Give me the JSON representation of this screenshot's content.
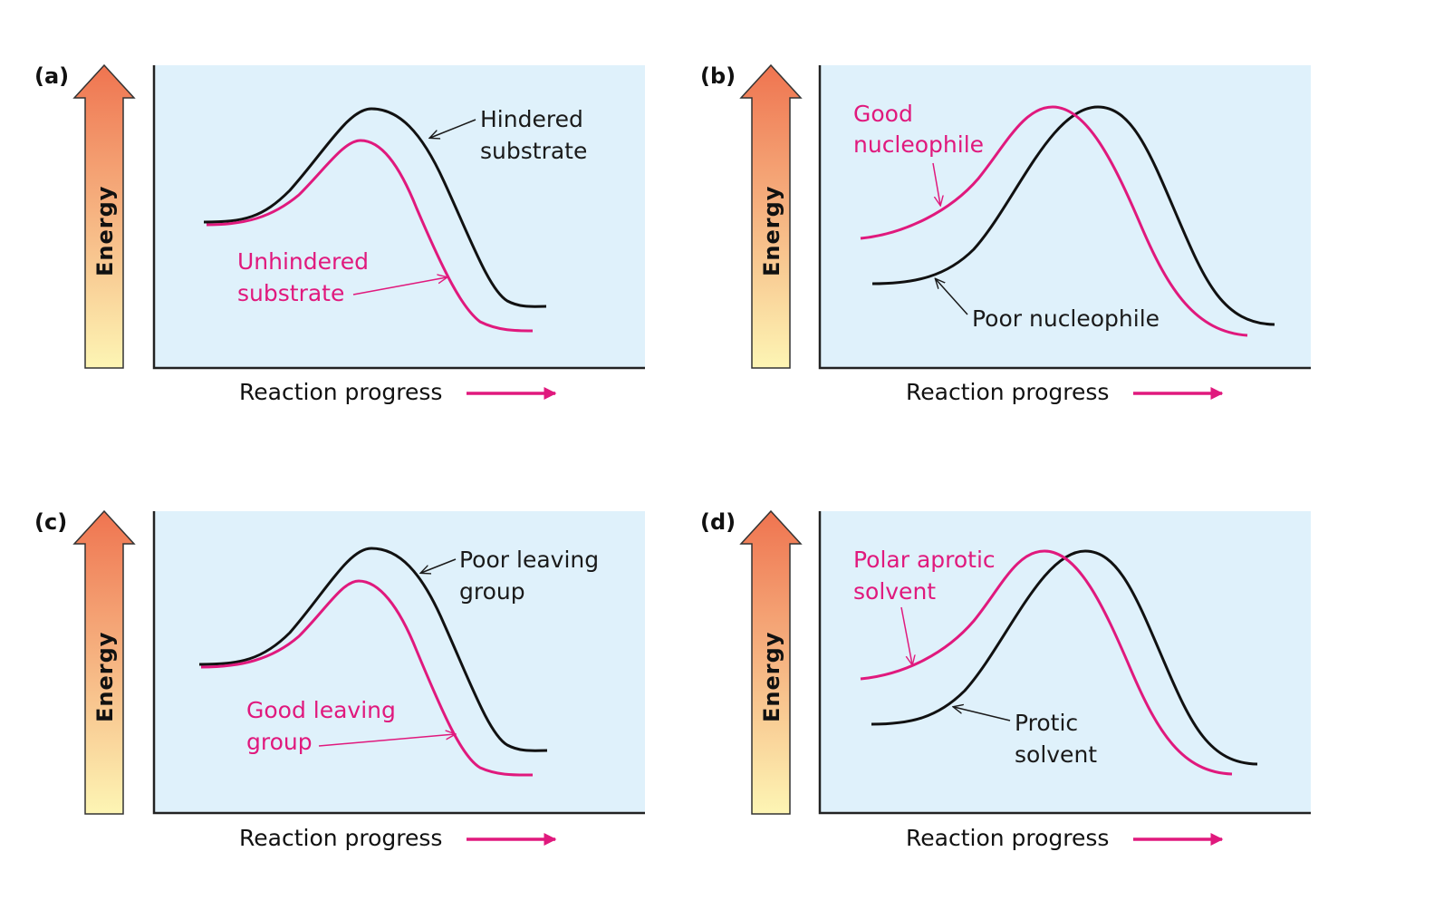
{
  "colors": {
    "plot_background": "#dff1fb",
    "black_curve": "#111111",
    "pink_curve": "#e0197d",
    "energy_arrow_top": "#ef7450",
    "energy_arrow_bottom": "#fdf5b4"
  },
  "panels": [
    {
      "id": "(a)",
      "y_label": "Energy",
      "x_label": "Reaction progress",
      "black_label": [
        "Hindered",
        "substrate"
      ],
      "pink_label": [
        "Unhindered",
        "substrate"
      ]
    },
    {
      "id": "(b)",
      "y_label": "Energy",
      "x_label": "Reaction progress",
      "black_label": [
        "Poor nucleophile"
      ],
      "pink_label": [
        "Good",
        "nucleophile"
      ]
    },
    {
      "id": "(c)",
      "y_label": "Energy",
      "x_label": "Reaction progress",
      "black_label": [
        "Poor leaving",
        "group"
      ],
      "pink_label": [
        "Good leaving",
        "group"
      ]
    },
    {
      "id": "(d)",
      "y_label": "Energy",
      "x_label": "Reaction progress",
      "black_label": [
        "Protic",
        "solvent"
      ],
      "pink_label": [
        "Polar aprotic",
        "solvent"
      ]
    }
  ]
}
